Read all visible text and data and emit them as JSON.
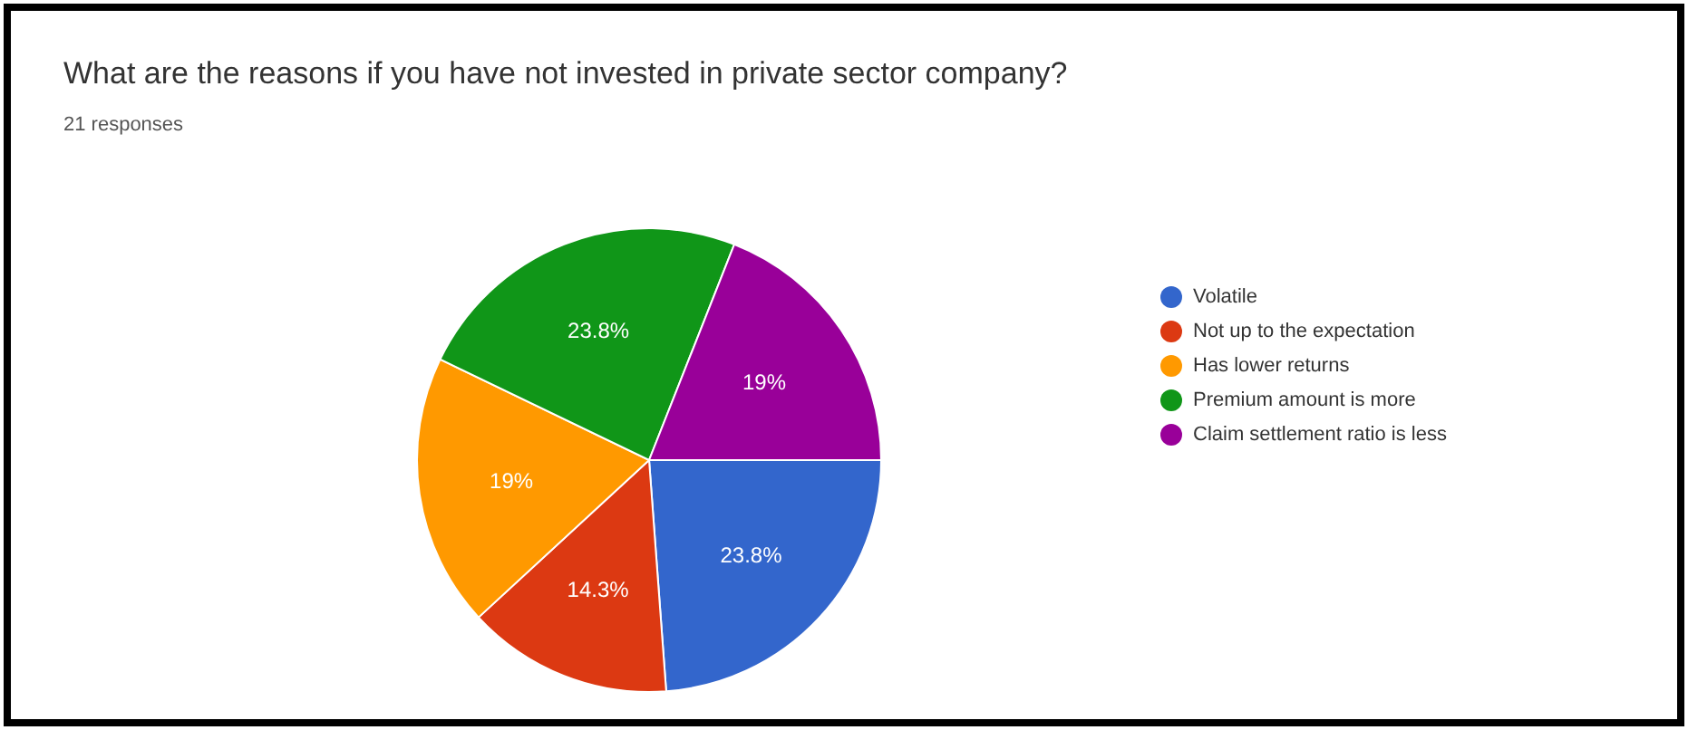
{
  "chart_data": {
    "type": "pie",
    "title": "What are the reasons if you have not invested in private sector company?",
    "subtitle": "21 responses",
    "categories": [
      "Volatile",
      "Not up to the expectation",
      "Has lower returns",
      "Premium amount is more",
      "Claim settlement ratio is less"
    ],
    "values": [
      23.8,
      14.3,
      19,
      23.8,
      19
    ],
    "colors": [
      "#3366cc",
      "#dc3912",
      "#ff9900",
      "#109618",
      "#990099"
    ],
    "value_labels": [
      "23.8%",
      "14.3%",
      "19%",
      "23.8%",
      "19%"
    ],
    "legend": "right"
  }
}
